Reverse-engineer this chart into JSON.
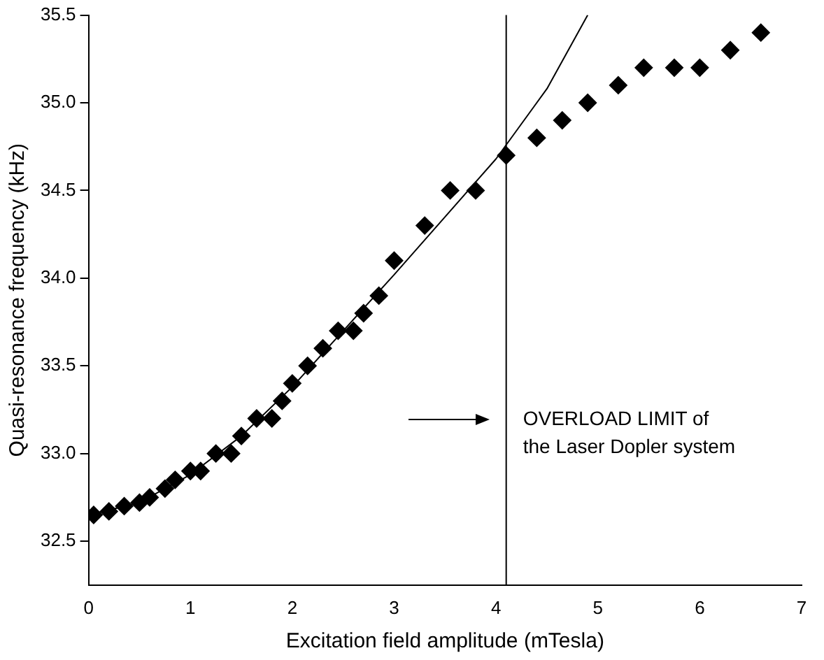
{
  "chart_data": {
    "type": "scatter",
    "xlabel": "Excitation field amplitude (mTesla)",
    "ylabel": "Quasi-resonance frequency (kHz)",
    "xlim": [
      0,
      7
    ],
    "xticks": [
      0,
      1,
      2,
      3,
      4,
      5,
      6,
      7
    ],
    "ylim": [
      32.25,
      35.5
    ],
    "yticks": [
      {
        "value": 32.5,
        "label": "32.5"
      },
      {
        "value": 33,
        "label": "33.0"
      },
      {
        "value": 33.5,
        "label": "33.5"
      },
      {
        "value": 34,
        "label": "34.0"
      },
      {
        "value": 34.5,
        "label": "34.5"
      },
      {
        "value": 35,
        "label": "35.0"
      },
      {
        "value": 35.5,
        "label": "35.5"
      }
    ],
    "grid": false,
    "legend": false,
    "marker": "diamond",
    "series": [
      {
        "type": "scatter",
        "color": "#000000",
        "x": [
          0.05,
          0.2,
          0.35,
          0.5,
          0.6,
          0.75,
          0.85,
          1.0,
          1.1,
          1.25,
          1.4,
          1.5,
          1.65,
          1.8,
          1.9,
          2.0,
          2.15,
          2.3,
          2.45,
          2.6,
          2.7,
          2.85,
          3.0,
          3.3,
          3.55,
          3.8,
          4.1,
          4.4,
          4.65,
          4.9,
          5.2,
          5.45,
          5.75,
          6.0,
          6.3,
          6.6
        ],
        "values": [
          32.65,
          32.67,
          32.7,
          32.72,
          32.75,
          32.8,
          32.85,
          32.9,
          32.9,
          33.0,
          33.0,
          33.1,
          33.2,
          33.2,
          33.3,
          33.4,
          33.5,
          33.6,
          33.7,
          33.7,
          33.8,
          33.9,
          34.1,
          34.3,
          34.5,
          34.5,
          34.7,
          34.8,
          34.9,
          35.0,
          35.1,
          35.2,
          35.2,
          35.2,
          35.3,
          35.4
        ]
      },
      {
        "type": "line",
        "color": "#000000",
        "marker": "none",
        "x": [
          0,
          0.5,
          1,
          1.5,
          2,
          2.5,
          3,
          3.5,
          4,
          4.5,
          4.9
        ],
        "values": [
          32.65,
          32.72,
          32.88,
          33.1,
          33.38,
          33.7,
          34.02,
          34.35,
          34.68,
          35.08,
          35.5
        ]
      }
    ],
    "ref_lines": [
      {
        "axis": "x",
        "value": 4.1,
        "label": "OVERLOAD LIMIT of\nthe Laser Dopler system",
        "color": "#000000"
      }
    ]
  }
}
